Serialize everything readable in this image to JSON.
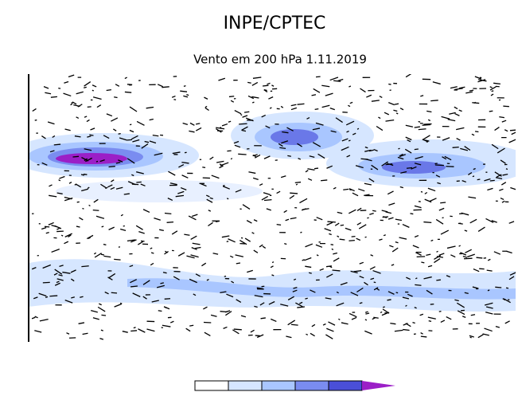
{
  "header": {
    "title": "INPE/CPTEC",
    "subtitle": "Vento em 200 hPa 1.11.2019"
  }
}
